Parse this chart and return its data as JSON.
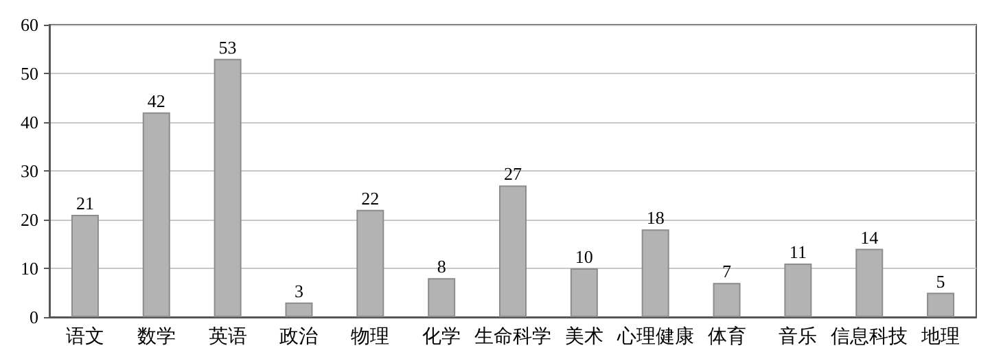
{
  "chart_data": {
    "type": "bar",
    "categories": [
      "语文",
      "数学",
      "英语",
      "政治",
      "物理",
      "化学",
      "生命科学",
      "美术",
      "心理健康",
      "体育",
      "音乐",
      "信息科技",
      "地理"
    ],
    "values": [
      21,
      42,
      53,
      3,
      22,
      8,
      27,
      10,
      18,
      7,
      11,
      14,
      5
    ],
    "color": "#b3b3b3",
    "ylim": [
      0,
      60
    ],
    "yticks": [
      0,
      10,
      20,
      30,
      40,
      50,
      60
    ],
    "grid": "y",
    "data_labels": true
  }
}
